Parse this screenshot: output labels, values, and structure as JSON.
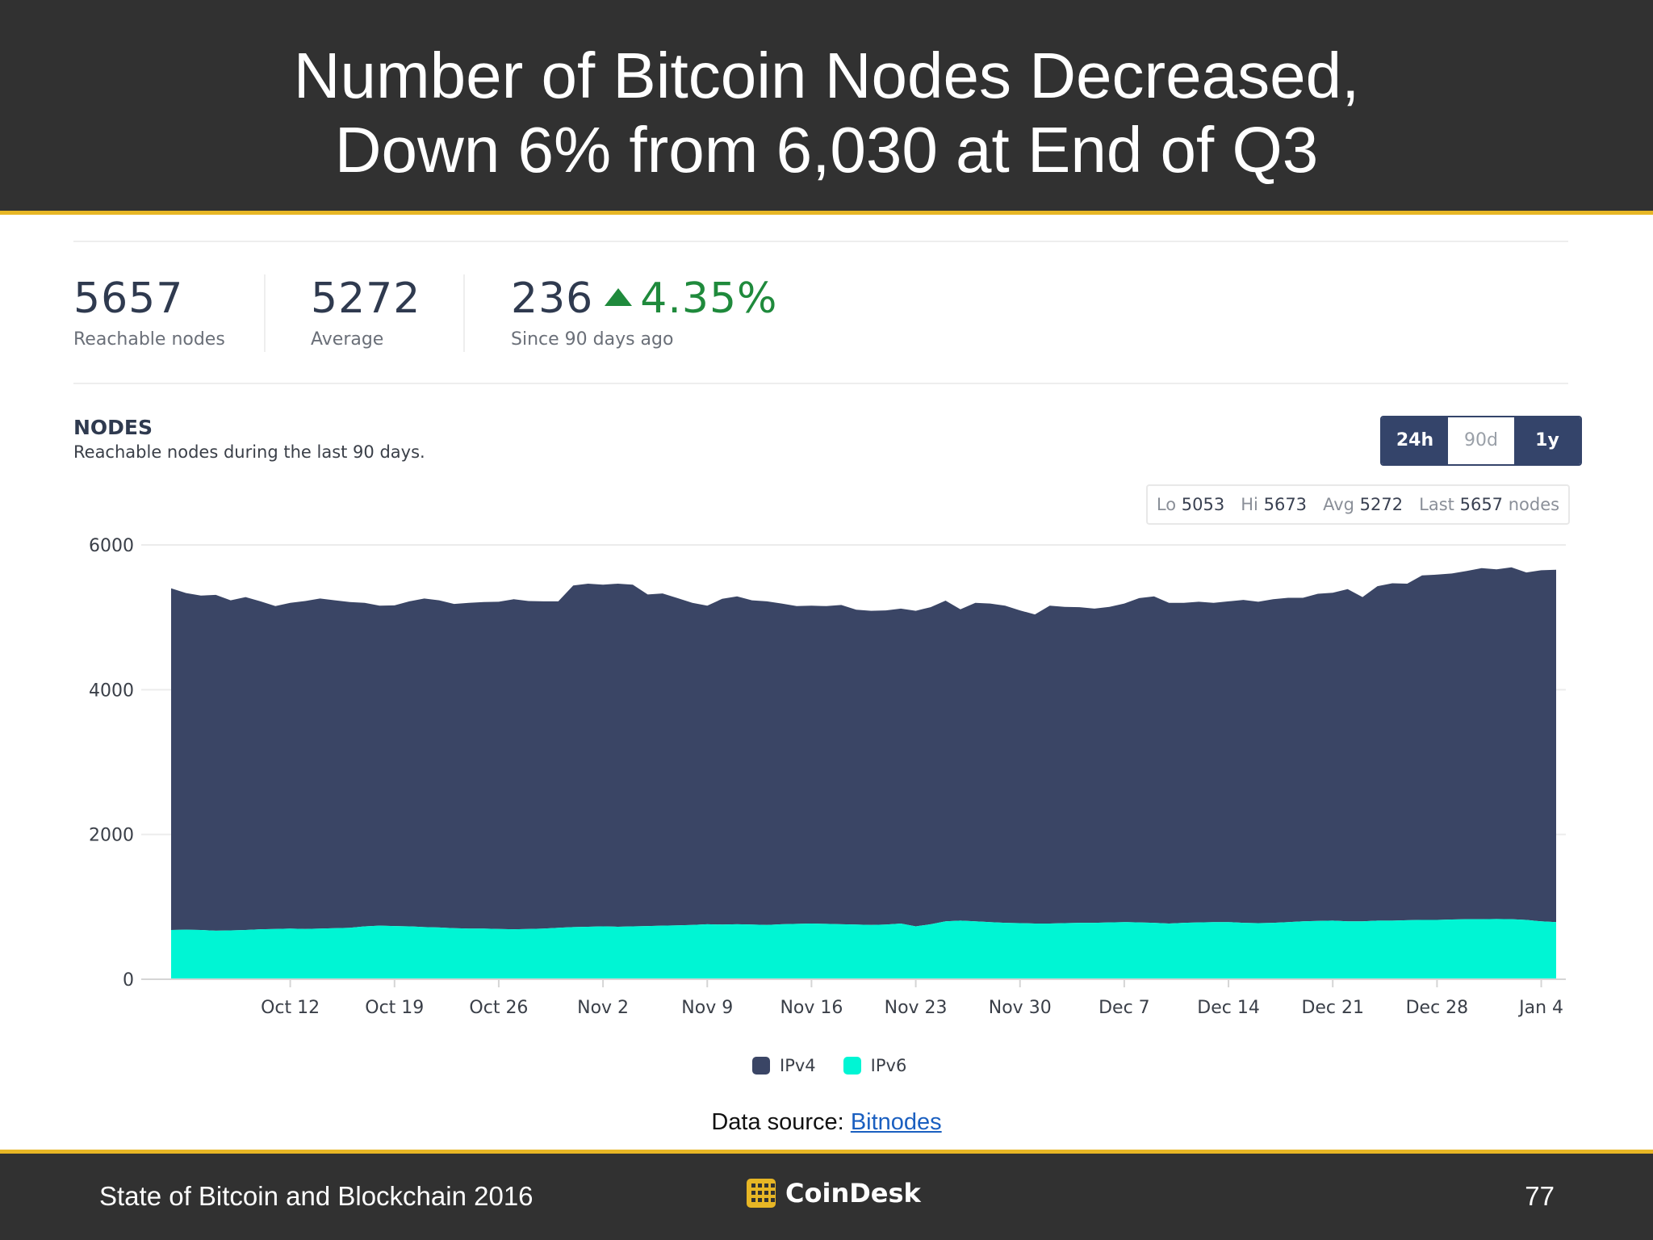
{
  "slide": {
    "title_line1": "Number of Bitcoin Nodes Decreased,",
    "title_line2": "Down 6% from 6,030 at End of Q3"
  },
  "stats": {
    "reachable_value": "5657",
    "reachable_label": "Reachable nodes",
    "average_value": "5272",
    "average_label": "Average",
    "change_value": "236",
    "change_pct": "4.35%",
    "change_label": "Since 90 days ago"
  },
  "panel": {
    "title": "NODES",
    "subtitle": "Reachable nodes during the last 90 days.",
    "range_buttons": [
      "24h",
      "90d",
      "1y"
    ],
    "summary": {
      "lo_label": "Lo",
      "lo": "5053",
      "hi_label": "Hi",
      "hi": "5673",
      "avg_label": "Avg",
      "avg": "5272",
      "last_label": "Last",
      "last": "5657",
      "unit": "nodes"
    }
  },
  "chart_data": {
    "type": "area",
    "stacked": true,
    "ylim": [
      0,
      6000
    ],
    "yticks": [
      0,
      2000,
      4000,
      6000
    ],
    "xlim": [
      "2016-10-04",
      "2017-01-05"
    ],
    "xticks": [
      {
        "date": "2016-10-12",
        "label": "Oct 12"
      },
      {
        "date": "2016-10-19",
        "label": "Oct 19"
      },
      {
        "date": "2016-10-26",
        "label": "Oct 26"
      },
      {
        "date": "2016-11-02",
        "label": "Nov 2"
      },
      {
        "date": "2016-11-09",
        "label": "Nov 9"
      },
      {
        "date": "2016-11-16",
        "label": "Nov 16"
      },
      {
        "date": "2016-11-23",
        "label": "Nov 23"
      },
      {
        "date": "2016-11-30",
        "label": "Nov 30"
      },
      {
        "date": "2016-12-07",
        "label": "Dec 7"
      },
      {
        "date": "2016-12-14",
        "label": "Dec 14"
      },
      {
        "date": "2016-12-21",
        "label": "Dec 21"
      },
      {
        "date": "2016-12-28",
        "label": "Dec 28"
      },
      {
        "date": "2017-01-04",
        "label": "Jan 4"
      }
    ],
    "x": [
      "2016-10-04",
      "2016-10-05",
      "2016-10-06",
      "2016-10-07",
      "2016-10-08",
      "2016-10-09",
      "2016-10-10",
      "2016-10-11",
      "2016-10-12",
      "2016-10-13",
      "2016-10-14",
      "2016-10-15",
      "2016-10-16",
      "2016-10-17",
      "2016-10-18",
      "2016-10-19",
      "2016-10-20",
      "2016-10-21",
      "2016-10-22",
      "2016-10-23",
      "2016-10-24",
      "2016-10-25",
      "2016-10-26",
      "2016-10-27",
      "2016-10-28",
      "2016-10-29",
      "2016-10-30",
      "2016-10-31",
      "2016-11-01",
      "2016-11-02",
      "2016-11-03",
      "2016-11-04",
      "2016-11-05",
      "2016-11-06",
      "2016-11-07",
      "2016-11-08",
      "2016-11-09",
      "2016-11-10",
      "2016-11-11",
      "2016-11-12",
      "2016-11-13",
      "2016-11-14",
      "2016-11-15",
      "2016-11-16",
      "2016-11-17",
      "2016-11-18",
      "2016-11-19",
      "2016-11-20",
      "2016-11-21",
      "2016-11-22",
      "2016-11-23",
      "2016-11-24",
      "2016-11-25",
      "2016-11-26",
      "2016-11-27",
      "2016-11-28",
      "2016-11-29",
      "2016-11-30",
      "2016-12-01",
      "2016-12-02",
      "2016-12-03",
      "2016-12-04",
      "2016-12-05",
      "2016-12-06",
      "2016-12-07",
      "2016-12-08",
      "2016-12-09",
      "2016-12-10",
      "2016-12-11",
      "2016-12-12",
      "2016-12-13",
      "2016-12-14",
      "2016-12-15",
      "2016-12-16",
      "2016-12-17",
      "2016-12-18",
      "2016-12-19",
      "2016-12-20",
      "2016-12-21",
      "2016-12-22",
      "2016-12-23",
      "2016-12-24",
      "2016-12-25",
      "2016-12-26",
      "2016-12-27",
      "2016-12-28",
      "2016-12-29",
      "2016-12-30",
      "2016-12-31",
      "2017-01-01",
      "2017-01-02",
      "2017-01-03",
      "2017-01-04",
      "2017-01-05"
    ],
    "series": [
      {
        "name": "IPv4",
        "color": "#3a4565",
        "values": [
          4720,
          4650,
          4620,
          4640,
          4560,
          4600,
          4530,
          4460,
          4500,
          4530,
          4560,
          4530,
          4500,
          4470,
          4420,
          4430,
          4490,
          4540,
          4520,
          4480,
          4500,
          4510,
          4520,
          4560,
          4530,
          4520,
          4510,
          4720,
          4740,
          4720,
          4740,
          4720,
          4580,
          4590,
          4520,
          4450,
          4400,
          4500,
          4530,
          4480,
          4470,
          4430,
          4390,
          4390,
          4390,
          4410,
          4350,
          4340,
          4340,
          4350,
          4360,
          4380,
          4430,
          4300,
          4400,
          4400,
          4380,
          4320,
          4270,
          4390,
          4370,
          4360,
          4340,
          4360,
          4400,
          4480,
          4510,
          4430,
          4420,
          4430,
          4410,
          4430,
          4460,
          4440,
          4470,
          4480,
          4470,
          4520,
          4530,
          4590,
          4480,
          4620,
          4660,
          4650,
          4760,
          4770,
          4780,
          4810,
          4850,
          4830,
          4860,
          4800,
          4850,
          4867
        ]
      },
      {
        "name": "IPv6",
        "color": "#00f5d4",
        "values": [
          680,
          685,
          680,
          670,
          675,
          680,
          690,
          695,
          700,
          695,
          700,
          705,
          710,
          730,
          740,
          735,
          730,
          720,
          715,
          705,
          700,
          700,
          695,
          690,
          695,
          700,
          710,
          720,
          725,
          730,
          725,
          730,
          735,
          740,
          745,
          750,
          760,
          755,
          760,
          755,
          750,
          760,
          765,
          770,
          765,
          760,
          755,
          750,
          755,
          770,
          730,
          760,
          800,
          810,
          800,
          790,
          780,
          775,
          770,
          770,
          775,
          780,
          780,
          785,
          790,
          785,
          780,
          770,
          780,
          785,
          790,
          790,
          780,
          775,
          780,
          790,
          800,
          805,
          810,
          800,
          800,
          810,
          810,
          815,
          820,
          820,
          825,
          830,
          830,
          832,
          830,
          820,
          800,
          790
        ]
      }
    ]
  },
  "legend": [
    {
      "label": "IPv4",
      "color": "#3a4565"
    },
    {
      "label": "IPv6",
      "color": "#00f5d4"
    }
  ],
  "source": {
    "prefix": "Data source:",
    "link": "Bitnodes"
  },
  "footer": {
    "left": "State of Bitcoin and Blockchain 2016",
    "brand": "CoinDesk",
    "page": "77"
  }
}
